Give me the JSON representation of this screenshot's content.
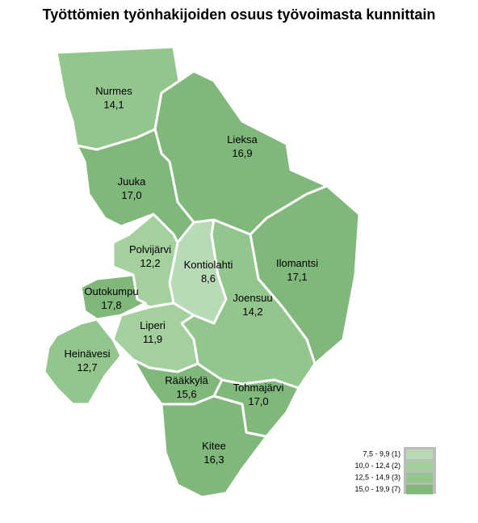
{
  "header": {
    "title": "Työttömien työnhakijoiden osuus työvoimasta kunnittain"
  },
  "regions": [
    {
      "name": "Nurmes",
      "value": "14,1",
      "color": "#93c68d"
    },
    {
      "name": "Lieksa",
      "value": "16,9",
      "color": "#80b87b"
    },
    {
      "name": "Juuka",
      "value": "17,0",
      "color": "#80b87b"
    },
    {
      "name": "Ilomantsi",
      "value": "17,1",
      "color": "#80b87b"
    },
    {
      "name": "Kontiolahti",
      "value": "8,6",
      "color": "#b9dab6"
    },
    {
      "name": "Joensuu",
      "value": "14,2",
      "color": "#93c68d"
    },
    {
      "name": "Polvijärvi",
      "value": "12,2",
      "color": "#a3d09d"
    },
    {
      "name": "Outokumpu",
      "value": "17,8",
      "color": "#80b87b"
    },
    {
      "name": "Liperi",
      "value": "11,9",
      "color": "#a3d09d"
    },
    {
      "name": "Heinävesi",
      "value": "12,7",
      "color": "#93c68d"
    },
    {
      "name": "Rääkkylä",
      "value": "15,6",
      "color": "#80b87b"
    },
    {
      "name": "Tohmajärvi",
      "value": "17,0",
      "color": "#80b87b"
    },
    {
      "name": "Kitee",
      "value": "16,3",
      "color": "#80b87b"
    }
  ],
  "legend": [
    {
      "label": "7,5 - 9,9 (1)",
      "color": "#b9dab6"
    },
    {
      "label": "10,0 - 12,4 (2)",
      "color": "#a3d09d"
    },
    {
      "label": "12,5 - 14,9 (3)",
      "color": "#93c68d"
    },
    {
      "label": "15,0 - 19,9 (7)",
      "color": "#80b87b"
    }
  ]
}
